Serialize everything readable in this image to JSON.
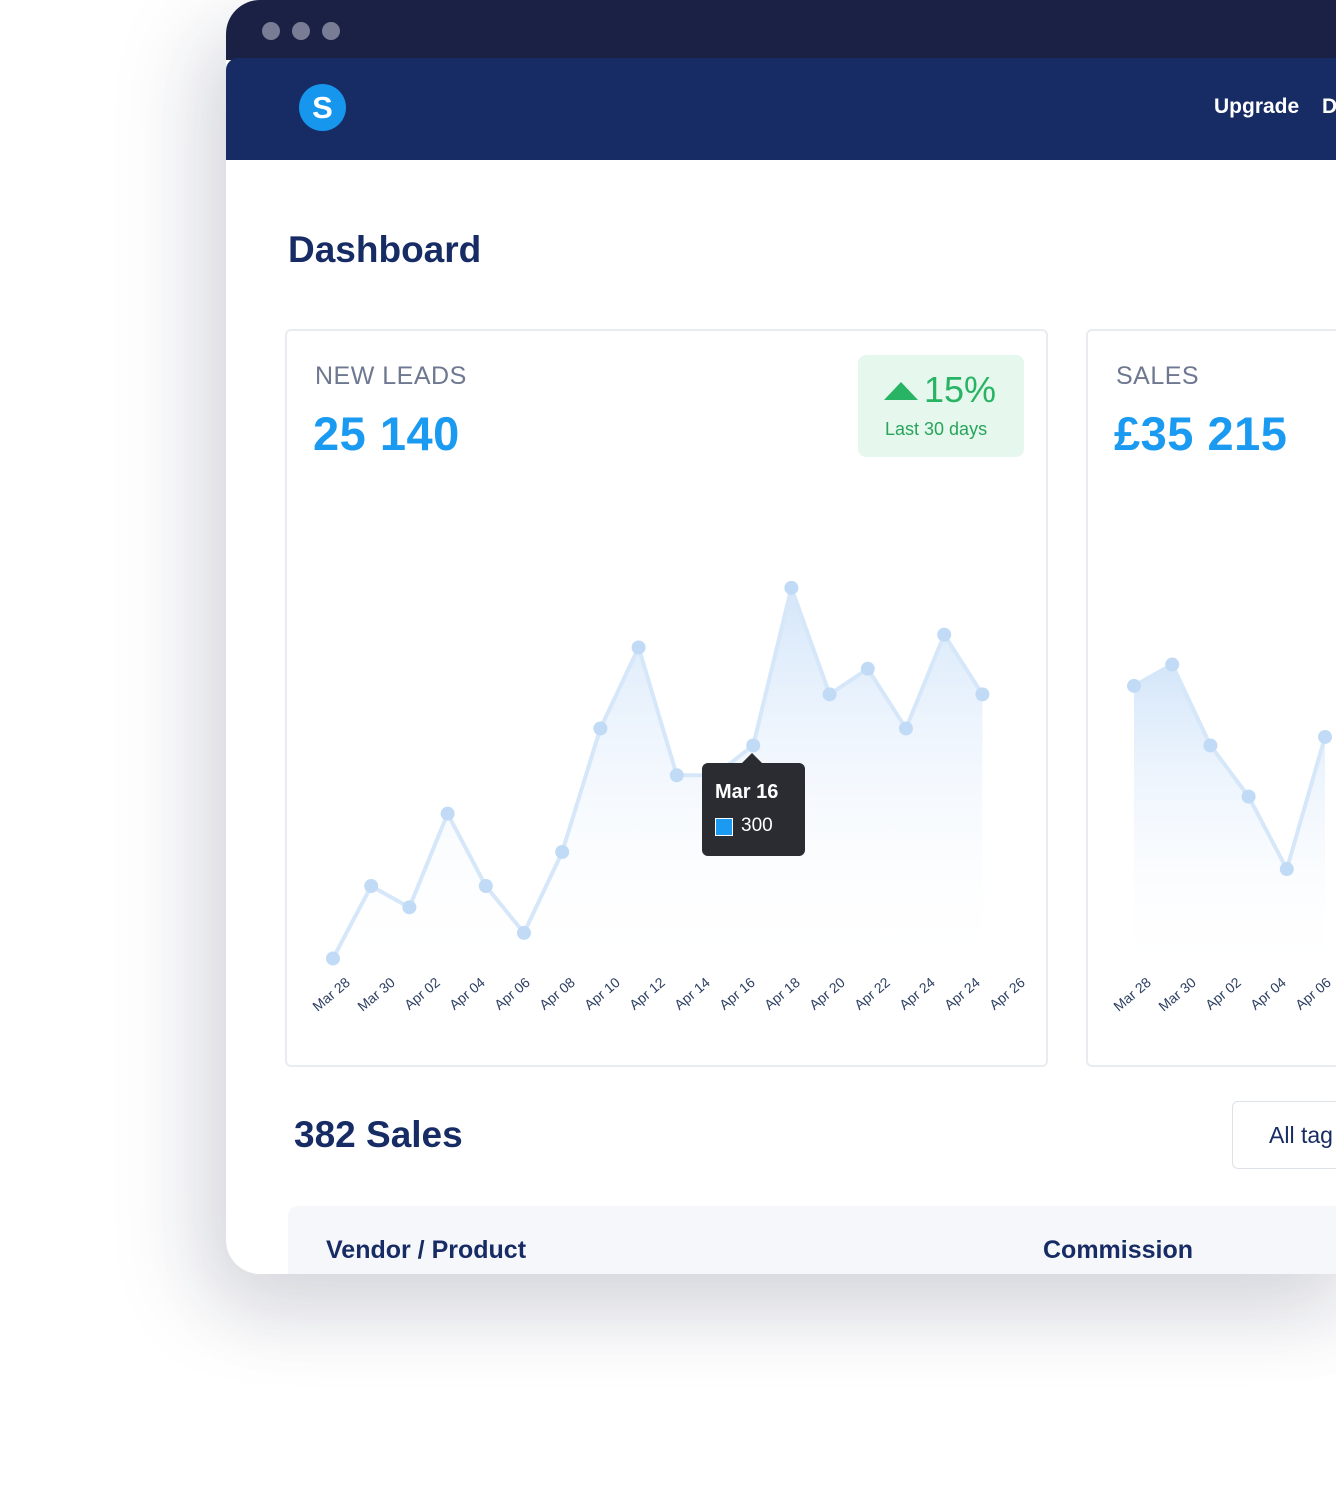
{
  "nav": {
    "upgrade_label": "Upgrade",
    "next_label": "D"
  },
  "logo_letter": "S",
  "page": {
    "title": "Dashboard"
  },
  "cards": {
    "leads": {
      "label": "NEW LEADS",
      "value": "25 140",
      "badge": {
        "pct": "15%",
        "period": "Last 30 days",
        "trend": "up",
        "color": "#28b463"
      },
      "tooltip": {
        "date": "Mar 16",
        "value": "300"
      }
    },
    "sales": {
      "label": "SALES",
      "value": "£35 215"
    }
  },
  "sales_section": {
    "title": "382 Sales",
    "filter_label": "All tag"
  },
  "table": {
    "columns": [
      "Vendor / Product",
      "Commission"
    ]
  },
  "colors": {
    "accent": "#1a9af0",
    "navy": "#172c64",
    "titlebar": "#1b2144",
    "success": "#28b463"
  },
  "chart_data": [
    {
      "type": "area",
      "x_ticks": [
        "Mar 28",
        "Mar 30",
        "Apr 02",
        "Apr 04",
        "Apr 06",
        "Apr 08",
        "Apr 10",
        "Apr 12",
        "Apr 14",
        "Apr 16",
        "Apr 18",
        "Apr 20",
        "Apr 22",
        "Apr 24",
        "Apr 24",
        "Apr 26"
      ],
      "values": [
        10,
        95,
        70,
        180,
        95,
        40,
        135,
        280,
        375,
        225,
        225,
        260,
        445,
        320,
        350,
        280,
        390,
        320
      ],
      "ylim": [
        0,
        500
      ],
      "grid": false,
      "legend": "none"
    },
    {
      "type": "area",
      "x_ticks": [
        "Mar 28",
        "Mar 30",
        "Apr 02",
        "Apr 04",
        "Apr 06"
      ],
      "values": [
        330,
        355,
        260,
        200,
        115,
        270
      ],
      "ylim": [
        0,
        500
      ],
      "grid": false,
      "legend": "none"
    }
  ]
}
